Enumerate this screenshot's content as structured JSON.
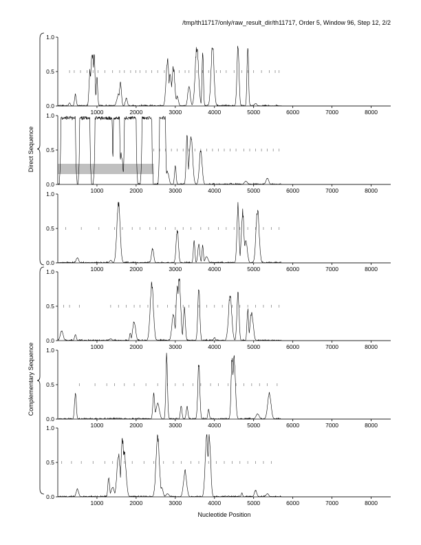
{
  "header": {
    "title": "/tmp/th11717/only/raw_result_dir/th11717, Order 5, Window 96, Step 12, 2/2"
  },
  "axes": {
    "xlabel": "Nucleotide Position",
    "x_ticks": [
      "1000",
      "2000",
      "3000",
      "4000",
      "5000",
      "6000",
      "7000",
      "8000"
    ],
    "y_ticks": [
      "0.0",
      "0.5",
      "1.0"
    ]
  },
  "groups": [
    {
      "label": "Direct Sequence"
    },
    {
      "label": "Complementary Sequence"
    }
  ],
  "chart_data": {
    "type": "line",
    "xlabel": "Nucleotide Position",
    "xlim": [
      0,
      8500
    ],
    "ylim": [
      0,
      1
    ],
    "grid": false,
    "panels": [
      {
        "frame": 1,
        "strand": "direct",
        "peaks": [
          [
            300,
            0.05
          ],
          [
            450,
            0.18
          ],
          [
            820,
            0.55
          ],
          [
            880,
            0.82
          ],
          [
            930,
            0.84
          ],
          [
            1000,
            0.45
          ],
          [
            1550,
            0.18
          ],
          [
            1600,
            0.38
          ],
          [
            1750,
            0.12
          ],
          [
            2800,
            0.72
          ],
          [
            2870,
            0.52
          ],
          [
            2950,
            0.6
          ],
          [
            3050,
            0.15
          ],
          [
            3350,
            0.3
          ],
          [
            3550,
            0.93
          ],
          [
            3700,
            0.88
          ],
          [
            3950,
            0.94
          ],
          [
            4600,
            0.93
          ],
          [
            4850,
            0.9
          ],
          [
            5050,
            0.04
          ]
        ],
        "ticks": [
          300,
          420,
          580,
          750,
          900,
          1030,
          1200,
          1400,
          1580,
          1700,
          1860,
          1990,
          2100,
          2250,
          2400,
          2550,
          2720,
          3100,
          3250,
          3350,
          3550,
          3700,
          3850,
          4050,
          4150,
          4300,
          4500,
          4700,
          4850,
          5000,
          5200,
          5400,
          5550,
          5650
        ]
      },
      {
        "frame": 2,
        "strand": "direct",
        "peaks": [
          [
            350,
            0.45
          ],
          [
            1050,
            0.48
          ],
          [
            1500,
            0.25
          ],
          [
            1620,
            0.48
          ],
          [
            2200,
            0.55
          ],
          [
            2800,
            0.2
          ],
          [
            3000,
            0.3
          ],
          [
            3300,
            0.8
          ],
          [
            3400,
            0.75
          ],
          [
            3650,
            0.55
          ],
          [
            4800,
            0.05
          ],
          [
            5350,
            0.1
          ]
        ],
        "ticks": [
          2450,
          2600,
          2750,
          2900,
          3050,
          3200,
          3350,
          3500,
          3650,
          3800,
          3950,
          4100,
          4250,
          4400,
          4550,
          4750,
          4900,
          5050,
          5200,
          5350,
          5500,
          5650
        ],
        "shaded_region": {
          "x": [
            0,
            2450
          ],
          "y": [
            0.15,
            0.3
          ]
        },
        "saturated_regions": [
          [
            80,
            450
          ],
          [
            560,
            820
          ],
          [
            950,
            1390
          ],
          [
            1420,
            1580
          ],
          [
            1700,
            2000
          ],
          [
            2150,
            2400
          ],
          [
            2600,
            2750
          ]
        ]
      },
      {
        "frame": 3,
        "strand": "direct",
        "peaks": [
          [
            500,
            0.08
          ],
          [
            1350,
            0.04
          ],
          [
            1550,
            0.93
          ],
          [
            2420,
            0.22
          ],
          [
            3050,
            0.52
          ],
          [
            3480,
            0.35
          ],
          [
            3600,
            0.28
          ],
          [
            3700,
            0.28
          ],
          [
            3800,
            0.1
          ],
          [
            4600,
            0.9
          ],
          [
            4720,
            0.8
          ],
          [
            4800,
            0.35
          ],
          [
            5100,
            0.84
          ]
        ],
        "ticks": [
          200,
          600,
          1050,
          1450,
          1650,
          1900,
          2100,
          2350,
          2500,
          2750,
          3000,
          3200,
          3400,
          3650,
          3850,
          4100,
          4300,
          4500,
          4650,
          4850,
          5050,
          5250,
          5450,
          5650
        ]
      },
      {
        "frame": 1,
        "strand": "complementary",
        "peaks": [
          [
            100,
            0.15
          ],
          [
            450,
            0.1
          ],
          [
            1350,
            0.03
          ],
          [
            1850,
            0.12
          ],
          [
            1950,
            0.3
          ],
          [
            2400,
            0.9
          ],
          [
            2950,
            0.4
          ],
          [
            3050,
            0.88
          ],
          [
            3100,
            0.95
          ],
          [
            3230,
            0.5
          ],
          [
            3600,
            0.82
          ],
          [
            4000,
            0.05
          ],
          [
            4400,
            0.7
          ],
          [
            4600,
            0.78
          ],
          [
            4850,
            0.5
          ],
          [
            4950,
            0.45
          ]
        ],
        "ticks": [
          150,
          300,
          550,
          1350,
          1550,
          1750,
          1950,
          2100,
          2300,
          2550,
          2800,
          3000,
          3200,
          3350,
          3600,
          3800,
          4000,
          4200,
          4450,
          4650,
          4850,
          5050,
          5250,
          5450,
          5650
        ]
      },
      {
        "frame": 2,
        "strand": "complementary",
        "peaks": [
          [
            450,
            0.42
          ],
          [
            2450,
            0.4
          ],
          [
            2550,
            0.25
          ],
          [
            2780,
            0.98
          ],
          [
            3150,
            0.2
          ],
          [
            3300,
            0.2
          ],
          [
            3600,
            0.85
          ],
          [
            3850,
            0.15
          ],
          [
            4450,
            0.98
          ],
          [
            4500,
            0.95
          ],
          [
            5100,
            0.08
          ],
          [
            5400,
            0.4
          ]
        ],
        "ticks": [
          550,
          950,
          1250,
          1450,
          1700,
          1950,
          2250,
          2550,
          2800,
          3000,
          3200,
          3450,
          3650,
          3900,
          4100,
          4350,
          4550,
          4750,
          4950,
          5150,
          5350,
          5600
        ]
      },
      {
        "frame": 3,
        "strand": "complementary",
        "peaks": [
          [
            500,
            0.12
          ],
          [
            1300,
            0.3
          ],
          [
            1400,
            0.15
          ],
          [
            1550,
            0.65
          ],
          [
            1650,
            0.92
          ],
          [
            1700,
            0.7
          ],
          [
            2550,
            0.95
          ],
          [
            2650,
            0.15
          ],
          [
            2800,
            0.05
          ],
          [
            3250,
            0.4
          ],
          [
            3800,
            0.98
          ],
          [
            3870,
            0.96
          ],
          [
            4700,
            0.06
          ],
          [
            5050,
            0.1
          ],
          [
            5350,
            0.05
          ]
        ],
        "ticks": [
          100,
          350,
          600,
          900,
          1200,
          1400,
          1700,
          1900,
          2200,
          2450,
          2700,
          2950,
          3150,
          3400,
          3600,
          3850,
          4050,
          4250,
          4450,
          4650,
          4850,
          5050,
          5250,
          5450
        ]
      }
    ]
  }
}
